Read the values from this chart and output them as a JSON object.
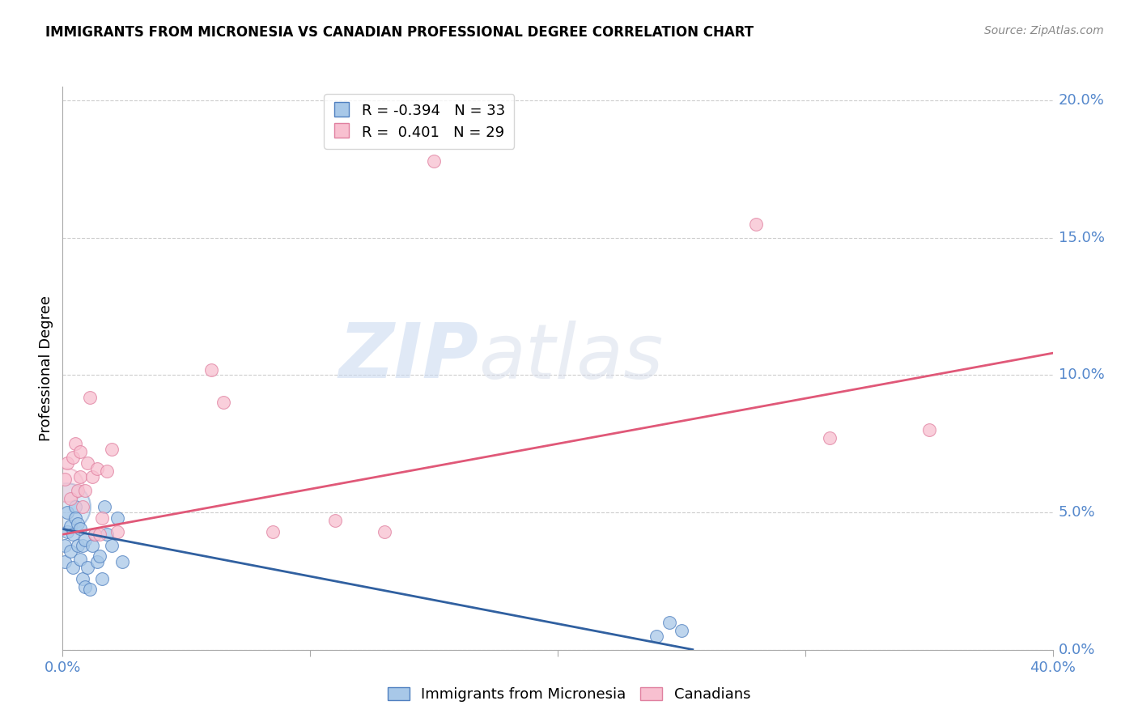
{
  "title": "IMMIGRANTS FROM MICRONESIA VS CANADIAN PROFESSIONAL DEGREE CORRELATION CHART",
  "source": "Source: ZipAtlas.com",
  "ylabel": "Professional Degree",
  "xlim": [
    0.0,
    0.4
  ],
  "ylim": [
    0.0,
    0.205
  ],
  "legend_r_blue": "-0.394",
  "legend_n_blue": "33",
  "legend_r_pink": "0.401",
  "legend_n_pink": "29",
  "blue_scatter_x": [
    0.001,
    0.001,
    0.002,
    0.002,
    0.003,
    0.003,
    0.004,
    0.004,
    0.005,
    0.005,
    0.006,
    0.006,
    0.007,
    0.007,
    0.008,
    0.008,
    0.009,
    0.009,
    0.01,
    0.011,
    0.012,
    0.013,
    0.014,
    0.015,
    0.016,
    0.017,
    0.018,
    0.02,
    0.022,
    0.024,
    0.24,
    0.245,
    0.25
  ],
  "blue_scatter_y": [
    0.038,
    0.032,
    0.043,
    0.05,
    0.045,
    0.036,
    0.042,
    0.03,
    0.052,
    0.048,
    0.046,
    0.038,
    0.044,
    0.033,
    0.038,
    0.026,
    0.04,
    0.023,
    0.03,
    0.022,
    0.038,
    0.042,
    0.032,
    0.034,
    0.026,
    0.052,
    0.042,
    0.038,
    0.048,
    0.032,
    0.005,
    0.01,
    0.007
  ],
  "pink_scatter_x": [
    0.001,
    0.002,
    0.003,
    0.004,
    0.005,
    0.006,
    0.007,
    0.007,
    0.008,
    0.009,
    0.01,
    0.011,
    0.012,
    0.013,
    0.014,
    0.015,
    0.016,
    0.018,
    0.02,
    0.022,
    0.15,
    0.28,
    0.31,
    0.35,
    0.06,
    0.065,
    0.085,
    0.11,
    0.13
  ],
  "pink_scatter_y": [
    0.062,
    0.068,
    0.055,
    0.07,
    0.075,
    0.058,
    0.063,
    0.072,
    0.052,
    0.058,
    0.068,
    0.092,
    0.063,
    0.042,
    0.066,
    0.042,
    0.048,
    0.065,
    0.073,
    0.043,
    0.178,
    0.155,
    0.077,
    0.08,
    0.102,
    0.09,
    0.043,
    0.047,
    0.043
  ],
  "blue_color": "#a8c8e8",
  "blue_edge_color": "#5080c0",
  "blue_line_color": "#3060a0",
  "pink_color": "#f8c0d0",
  "pink_edge_color": "#e080a0",
  "pink_line_color": "#e05878",
  "grid_color": "#c8c8c8",
  "background_color": "#ffffff",
  "watermark_zip": "ZIP",
  "watermark_atlas": "atlas",
  "tick_label_color": "#5588cc",
  "ylabel_tick_vals": [
    0.0,
    0.05,
    0.1,
    0.15,
    0.2
  ],
  "blue_line_x": [
    0.0,
    0.255
  ],
  "blue_line_y_start": 0.044,
  "blue_line_y_end": 0.0,
  "pink_line_x": [
    0.0,
    0.4
  ],
  "pink_line_y_start": 0.042,
  "pink_line_y_end": 0.108
}
